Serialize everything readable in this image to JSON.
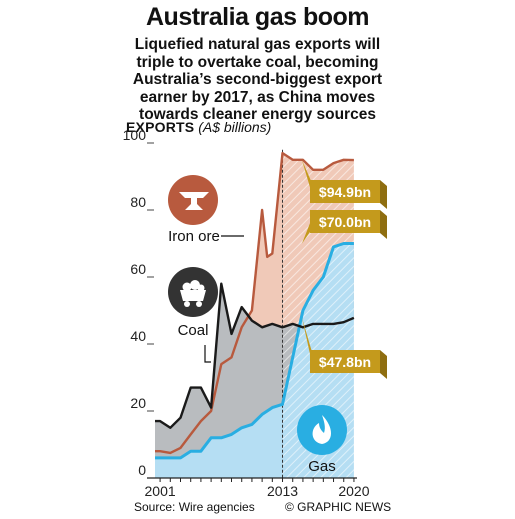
{
  "header": {
    "title": "Australia gas boom",
    "subtitle_lines": [
      "Liquefied natural gas exports will",
      "triple to overtake coal, becoming",
      "Australia’s second-biggest export",
      "earner by 2017, as China moves",
      "towards cleaner energy sources"
    ]
  },
  "footer": {
    "source": "Source: Wire agencies",
    "credit": "© GRAPHIC NEWS"
  },
  "colors": {
    "iron_ore": "#b85a3e",
    "iron_ore_fill": "#f0c9b8",
    "coal": "#1a1a1a",
    "coal_fill": "#b9bcbf",
    "gas": "#29aee2",
    "gas_fill": "#b5def3",
    "callout_gold": "#c49a1c",
    "callout_gold_dark": "#8f6e10",
    "forecast_line": "#333333"
  },
  "chart_data": {
    "type": "area",
    "ylabel": "EXPORTS",
    "ylabel_unit": "(A$ billions)",
    "ylim": [
      0,
      100
    ],
    "yticks": [
      0,
      20,
      40,
      60,
      80,
      100
    ],
    "xlim": [
      2001,
      2020
    ],
    "xtick_labels": [
      {
        "x": 2001,
        "label": "2001"
      },
      {
        "x": 2013,
        "label": "2013"
      },
      {
        "x": 2020,
        "label": "2020"
      }
    ],
    "forecast_start": 2013,
    "series": [
      {
        "name": "Iron ore",
        "x": [
          2000.5,
          2001,
          2002,
          2003,
          2004,
          2005,
          2006,
          2007,
          2008,
          2009,
          2010,
          2011,
          2011.5,
          2012,
          2013,
          2014,
          2015,
          2016,
          2017,
          2018,
          2019,
          2020
        ],
        "values": [
          8,
          8,
          7.5,
          9,
          13,
          17,
          20,
          34,
          36,
          45,
          50,
          80,
          66,
          67,
          97,
          95,
          95,
          92,
          92,
          94,
          95,
          94.9
        ]
      },
      {
        "name": "Coal",
        "x": [
          2000.5,
          2001,
          2002,
          2003,
          2004,
          2005,
          2006,
          2007,
          2008,
          2009,
          2010,
          2011,
          2012,
          2013,
          2014,
          2015,
          2016,
          2017,
          2018,
          2019,
          2020
        ],
        "values": [
          17,
          17,
          15,
          18,
          27,
          27,
          21,
          58,
          43,
          51,
          47,
          45,
          46,
          45,
          46,
          45,
          46,
          46,
          46,
          46.5,
          47.8
        ]
      },
      {
        "name": "Gas",
        "x": [
          2000.5,
          2001,
          2002,
          2003,
          2004,
          2005,
          2006,
          2007,
          2008,
          2009,
          2010,
          2011,
          2012,
          2013,
          2014,
          2015,
          2016,
          2017,
          2018,
          2019,
          2020
        ],
        "values": [
          6,
          6,
          6,
          6,
          8,
          8,
          12,
          12,
          13,
          15,
          16,
          19,
          21,
          22,
          36,
          50,
          56,
          60,
          69,
          70,
          70.0
        ]
      }
    ],
    "callouts": [
      {
        "series": "Iron ore",
        "text": "$94.9bn"
      },
      {
        "series": "Gas",
        "text": "$70.0bn"
      },
      {
        "series": "Coal",
        "text": "$47.8bn"
      }
    ],
    "icon_labels": [
      {
        "series": "Iron ore",
        "icon": "anvil-icon",
        "text": "Iron ore"
      },
      {
        "series": "Coal",
        "icon": "coal-cart-icon",
        "text": "Coal"
      },
      {
        "series": "Gas",
        "icon": "gas-flame-icon",
        "text": "Gas"
      }
    ],
    "grid": false,
    "legend": "none"
  }
}
